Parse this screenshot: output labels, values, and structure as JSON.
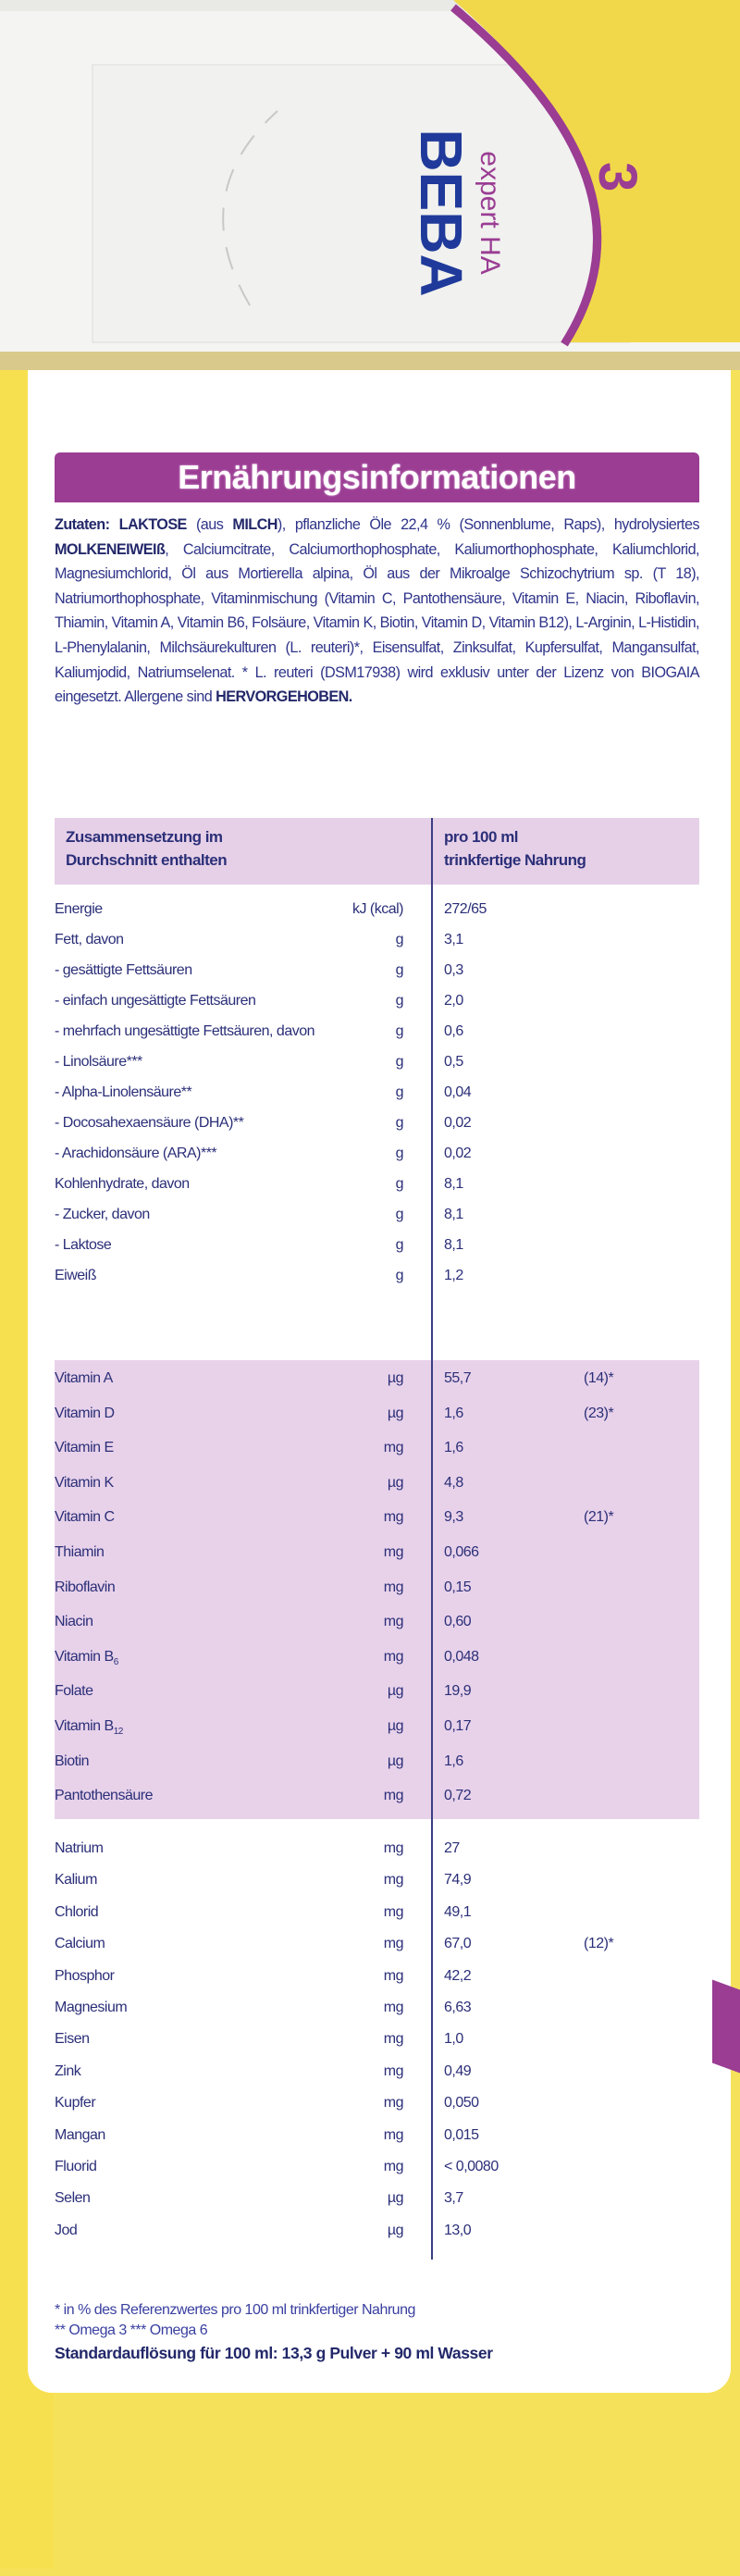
{
  "lid": {
    "brand": "BEBA",
    "brand_sub": "expert HA",
    "stage": "3",
    "colors": {
      "purple": "#9a3d93",
      "yellow": "#f1d84a",
      "navy": "#23286a"
    }
  },
  "heading": "Ernährungsinformationen",
  "ingredients": {
    "label": "Zutaten:",
    "parts": [
      {
        "t": " "
      },
      {
        "b": "LAKTOSE"
      },
      {
        "t": " (aus "
      },
      {
        "b": "MILCH"
      },
      {
        "t": "), pflanzliche Öle 22,4 % (Sonnenblume, Raps), hydrolysiertes "
      },
      {
        "b": "MOLKENEIWEIß"
      },
      {
        "t": ", Calciumcitrate, Calciumorthophosphate, Kaliumorthophosphate, Kaliumchlorid, Magnesiumchlorid, Öl aus Mortierella alpina, Öl aus der Mikroalge Schizochytrium sp. (T 18), Natriumorthophosphate, Vitaminmischung (Vitamin C, Pantothensäure, Vitamin E, Niacin, Riboflavin, Thiamin, Vitamin A, Vitamin B6, Folsäure, Vitamin K, Biotin, Vitamin D, Vitamin B12), L-Arginin, L-Histidin, L-Phenylalanin, Milchsäurekulturen (L. reuteri)*, Eisensulfat, Zinksulfat, Kupfersulfat, Mangansulfat, Kaliumjodid, Natriumselenat. * L. reuteri (DSM17938) wird exklusiv unter der Lizenz von BIOGAIA eingesetzt. Allergene sind "
      },
      {
        "b": "HERVORGEHOBEN."
      }
    ]
  },
  "table": {
    "header_left": [
      "Zusammensetzung im",
      "Durchschnitt enthalten"
    ],
    "header_right": [
      "pro 100 ml",
      "trinkfertige Nahrung"
    ],
    "macros": [
      {
        "name": "Energie",
        "unit": "kJ (kcal)",
        "value": "272/65"
      },
      {
        "name": "Fett, davon",
        "unit": "g",
        "value": "3,1"
      },
      {
        "name": " - gesättigte Fettsäuren",
        "unit": "g",
        "value": "0,3"
      },
      {
        "name": " - einfach ungesättigte Fettsäuren",
        "unit": "g",
        "value": "2,0"
      },
      {
        "name": " - mehrfach ungesättigte Fettsäuren, davon",
        "unit": "g",
        "value": "0,6"
      },
      {
        "name": "   - Linolsäure***",
        "unit": "g",
        "value": "0,5"
      },
      {
        "name": "   - Alpha-Linolensäure**",
        "unit": "g",
        "value": "0,04"
      },
      {
        "name": "   - Docosahexaensäure (DHA)**",
        "unit": "g",
        "value": "0,02"
      },
      {
        "name": "   - Arachidonsäure (ARA)***",
        "unit": "g",
        "value": "0,02"
      },
      {
        "name": "Kohlenhydrate, davon",
        "unit": "g",
        "value": "8,1"
      },
      {
        "name": " - Zucker, davon",
        "unit": "g",
        "value": "8,1"
      },
      {
        "name": "    - Laktose",
        "unit": "g",
        "value": "8,1"
      },
      {
        "name": "Eiweiß",
        "unit": "g",
        "value": "1,2"
      }
    ],
    "vitamins": [
      {
        "name": "Vitamin A",
        "unit": "µg",
        "value": "55,7",
        "pct": "(14)*"
      },
      {
        "name": "Vitamin D",
        "unit": "µg",
        "value": "1,6",
        "pct": "(23)*"
      },
      {
        "name": "Vitamin E",
        "unit": "mg",
        "value": "1,6"
      },
      {
        "name": "Vitamin K",
        "unit": "µg",
        "value": "4,8"
      },
      {
        "name": "Vitamin C",
        "unit": "mg",
        "value": "9,3",
        "pct": "(21)*"
      },
      {
        "name": "Thiamin",
        "unit": "mg",
        "value": "0,066"
      },
      {
        "name": "Riboflavin",
        "unit": "mg",
        "value": "0,15"
      },
      {
        "name": "Niacin",
        "unit": "mg",
        "value": "0,60"
      },
      {
        "name": "Vitamin B",
        "sub": "6",
        "unit": "mg",
        "value": "0,048"
      },
      {
        "name": "Folate",
        "unit": "µg",
        "value": "19,9"
      },
      {
        "name": "Vitamin B",
        "sub": "12",
        "unit": "µg",
        "value": "0,17"
      },
      {
        "name": "Biotin",
        "unit": "µg",
        "value": "1,6"
      },
      {
        "name": "Pantothensäure",
        "unit": "mg",
        "value": "0,72"
      }
    ],
    "minerals": [
      {
        "name": "Natrium",
        "unit": "mg",
        "value": "27"
      },
      {
        "name": "Kalium",
        "unit": "mg",
        "value": "74,9"
      },
      {
        "name": "Chlorid",
        "unit": "mg",
        "value": "49,1"
      },
      {
        "name": "Calcium",
        "unit": "mg",
        "value": "67,0",
        "pct": "(12)*"
      },
      {
        "name": "Phosphor",
        "unit": "mg",
        "value": "42,2"
      },
      {
        "name": "Magnesium",
        "unit": "mg",
        "value": "6,63"
      },
      {
        "name": "Eisen",
        "unit": "mg",
        "value": "1,0"
      },
      {
        "name": "Zink",
        "unit": "mg",
        "value": "0,49"
      },
      {
        "name": "Kupfer",
        "unit": "mg",
        "value": "0,050"
      },
      {
        "name": "Mangan",
        "unit": "mg",
        "value": "0,015"
      },
      {
        "name": "Fluorid",
        "unit": "mg",
        "value": "< 0,0080"
      },
      {
        "name": "Selen",
        "unit": "µg",
        "value": "3,7"
      },
      {
        "name": "Jod",
        "unit": "µg",
        "value": "13,0"
      }
    ]
  },
  "footnotes": {
    "ref": "* in % des Referenzwertes pro 100 ml trinkfertiger Nahrung",
    "omega": "** Omega 3 *** Omega 6",
    "standard": "Standardauflösung für 100 ml: 13,3 g Pulver + 90 ml Wasser"
  }
}
